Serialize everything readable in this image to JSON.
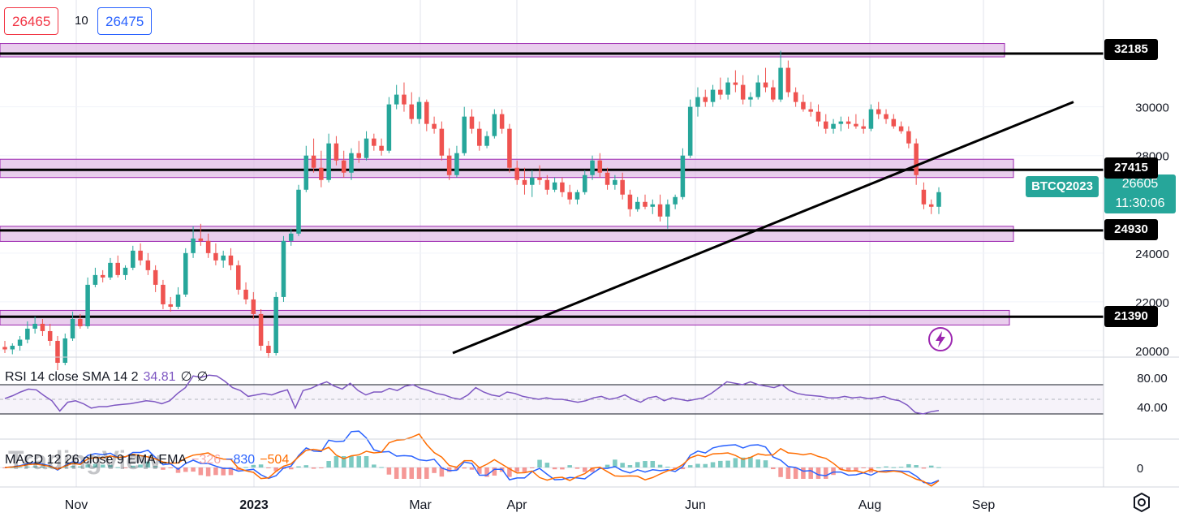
{
  "trade_panel": {
    "sell_price": "26465",
    "spread": "10",
    "buy_price": "26475"
  },
  "symbol_tag": "BTCQ2023",
  "last_price": {
    "value": "26605",
    "countdown": "11:30:06"
  },
  "level_tags": [
    "32185",
    "27415",
    "24930",
    "21390"
  ],
  "rsi_panel": {
    "label": "RSI 14 close SMA 14 2",
    "value": "34.81",
    "extra1": "∅",
    "extra2": "∅",
    "ticks": [
      "80.00",
      "40.00"
    ]
  },
  "macd_panel": {
    "label": "MACD 12 26 close 9 EMA EMA",
    "hist": "−326",
    "macd": "−830",
    "signal": "−504",
    "ticks": [
      "0"
    ]
  },
  "watermark": "TradingView",
  "colors": {
    "up": "#26a69a",
    "down": "#ef5350",
    "zone_fill": "#e1bee7",
    "zone_border": "#9c27b0",
    "rsi": "#7e57c2",
    "macd": "#2962ff",
    "signal": "#ff6d00"
  },
  "icons": {
    "alert": "lightning-bolt-icon",
    "settings": "gear-icon"
  },
  "chart_data": {
    "type": "candlestick",
    "symbol": "BTCQ2023",
    "xlabels": [
      "Nov",
      "2023",
      "Mar",
      "Apr",
      "Jun",
      "Aug",
      "Sep"
    ],
    "ylabels": [
      "32185",
      "30000",
      "28000",
      "27415",
      "26605",
      "24930",
      "24000",
      "22000",
      "21390",
      "20000"
    ],
    "y_ticks": [
      30000,
      28000,
      24000,
      22000,
      20000
    ],
    "ylim": [
      19800,
      33400
    ],
    "horizontal_levels": [
      32185,
      27415,
      24930,
      21390
    ],
    "zones": [
      [
        32050,
        32600
      ],
      [
        27100,
        27850
      ],
      [
        24480,
        25100
      ],
      [
        21050,
        21650
      ]
    ],
    "trendline": {
      "from": {
        "date": "Mar 10",
        "price": 19900
      },
      "to": {
        "date": "Aug 31",
        "price": 30200
      }
    },
    "candles": [
      {
        "o": 20150,
        "h": 20400,
        "l": 19900,
        "c": 20050
      },
      {
        "o": 20050,
        "h": 20300,
        "l": 19850,
        "c": 20200
      },
      {
        "o": 20200,
        "h": 20600,
        "l": 20000,
        "c": 20450
      },
      {
        "o": 20450,
        "h": 21200,
        "l": 20300,
        "c": 20900
      },
      {
        "o": 20900,
        "h": 21400,
        "l": 20700,
        "c": 21100
      },
      {
        "o": 21100,
        "h": 21300,
        "l": 20600,
        "c": 20800
      },
      {
        "o": 20800,
        "h": 21100,
        "l": 20200,
        "c": 20400
      },
      {
        "o": 20400,
        "h": 20600,
        "l": 19200,
        "c": 19500
      },
      {
        "o": 19500,
        "h": 20700,
        "l": 19400,
        "c": 20500
      },
      {
        "o": 20500,
        "h": 21600,
        "l": 20400,
        "c": 21300
      },
      {
        "o": 21300,
        "h": 21500,
        "l": 20900,
        "c": 21000
      },
      {
        "o": 21000,
        "h": 23000,
        "l": 20900,
        "c": 22700
      },
      {
        "o": 22700,
        "h": 23400,
        "l": 22600,
        "c": 23100
      },
      {
        "o": 23100,
        "h": 23300,
        "l": 22800,
        "c": 23000
      },
      {
        "o": 23000,
        "h": 23800,
        "l": 22900,
        "c": 23600
      },
      {
        "o": 23600,
        "h": 23900,
        "l": 23000,
        "c": 23100
      },
      {
        "o": 23100,
        "h": 23500,
        "l": 22900,
        "c": 23400
      },
      {
        "o": 23400,
        "h": 24300,
        "l": 23300,
        "c": 24100
      },
      {
        "o": 24100,
        "h": 24400,
        "l": 23500,
        "c": 23700
      },
      {
        "o": 23700,
        "h": 24000,
        "l": 23100,
        "c": 23300
      },
      {
        "o": 23300,
        "h": 23500,
        "l": 22400,
        "c": 22700
      },
      {
        "o": 22700,
        "h": 22900,
        "l": 21700,
        "c": 21900
      },
      {
        "o": 21900,
        "h": 22200,
        "l": 21600,
        "c": 21800
      },
      {
        "o": 21800,
        "h": 22600,
        "l": 21700,
        "c": 22300
      },
      {
        "o": 22300,
        "h": 24200,
        "l": 22200,
        "c": 24000
      },
      {
        "o": 24000,
        "h": 25100,
        "l": 23800,
        "c": 24600
      },
      {
        "o": 24600,
        "h": 25200,
        "l": 24300,
        "c": 24500
      },
      {
        "o": 24500,
        "h": 24800,
        "l": 23800,
        "c": 24000
      },
      {
        "o": 24000,
        "h": 24400,
        "l": 23500,
        "c": 23700
      },
      {
        "o": 23700,
        "h": 24100,
        "l": 23400,
        "c": 23900
      },
      {
        "o": 23900,
        "h": 24200,
        "l": 23300,
        "c": 23500
      },
      {
        "o": 23500,
        "h": 23700,
        "l": 22300,
        "c": 22500
      },
      {
        "o": 22500,
        "h": 22800,
        "l": 21900,
        "c": 22100
      },
      {
        "o": 22100,
        "h": 22400,
        "l": 21300,
        "c": 21500
      },
      {
        "o": 21500,
        "h": 21700,
        "l": 20000,
        "c": 20200
      },
      {
        "o": 20200,
        "h": 20400,
        "l": 19700,
        "c": 19900
      },
      {
        "o": 19900,
        "h": 22400,
        "l": 19800,
        "c": 22200
      },
      {
        "o": 22200,
        "h": 24700,
        "l": 22000,
        "c": 24500
      },
      {
        "o": 24500,
        "h": 25000,
        "l": 24300,
        "c": 24800
      },
      {
        "o": 24800,
        "h": 26800,
        "l": 24700,
        "c": 26600
      },
      {
        "o": 26600,
        "h": 28400,
        "l": 26500,
        "c": 28000
      },
      {
        "o": 28000,
        "h": 28700,
        "l": 27300,
        "c": 27500
      },
      {
        "o": 27500,
        "h": 28200,
        "l": 26700,
        "c": 27000
      },
      {
        "o": 27000,
        "h": 28900,
        "l": 26900,
        "c": 28500
      },
      {
        "o": 28500,
        "h": 28800,
        "l": 27600,
        "c": 27800
      },
      {
        "o": 27800,
        "h": 28200,
        "l": 27100,
        "c": 27300
      },
      {
        "o": 27300,
        "h": 28300,
        "l": 27000,
        "c": 28100
      },
      {
        "o": 28100,
        "h": 28600,
        "l": 27700,
        "c": 27900
      },
      {
        "o": 27900,
        "h": 29000,
        "l": 27800,
        "c": 28700
      },
      {
        "o": 28700,
        "h": 28900,
        "l": 28200,
        "c": 28400
      },
      {
        "o": 28400,
        "h": 28700,
        "l": 28000,
        "c": 28200
      },
      {
        "o": 28200,
        "h": 30400,
        "l": 28100,
        "c": 30100
      },
      {
        "o": 30100,
        "h": 30900,
        "l": 29900,
        "c": 30500
      },
      {
        "o": 30500,
        "h": 31000,
        "l": 29800,
        "c": 30100
      },
      {
        "o": 30100,
        "h": 30600,
        "l": 29300,
        "c": 29500
      },
      {
        "o": 29500,
        "h": 30400,
        "l": 29300,
        "c": 30200
      },
      {
        "o": 30200,
        "h": 30300,
        "l": 29000,
        "c": 29300
      },
      {
        "o": 29300,
        "h": 29600,
        "l": 28900,
        "c": 29100
      },
      {
        "o": 29100,
        "h": 29400,
        "l": 27800,
        "c": 28000
      },
      {
        "o": 28000,
        "h": 28300,
        "l": 27000,
        "c": 27200
      },
      {
        "o": 27200,
        "h": 28400,
        "l": 27100,
        "c": 28100
      },
      {
        "o": 28100,
        "h": 30000,
        "l": 28000,
        "c": 29600
      },
      {
        "o": 29600,
        "h": 29900,
        "l": 28900,
        "c": 29100
      },
      {
        "o": 29100,
        "h": 29400,
        "l": 28200,
        "c": 28400
      },
      {
        "o": 28400,
        "h": 29000,
        "l": 28300,
        "c": 28800
      },
      {
        "o": 28800,
        "h": 29900,
        "l": 28700,
        "c": 29700
      },
      {
        "o": 29700,
        "h": 29900,
        "l": 28900,
        "c": 29100
      },
      {
        "o": 29100,
        "h": 29300,
        "l": 27300,
        "c": 27500
      },
      {
        "o": 27500,
        "h": 27800,
        "l": 26800,
        "c": 27000
      },
      {
        "o": 27000,
        "h": 27500,
        "l": 26400,
        "c": 26800
      },
      {
        "o": 26800,
        "h": 27400,
        "l": 26300,
        "c": 27100
      },
      {
        "o": 27100,
        "h": 27600,
        "l": 26800,
        "c": 27000
      },
      {
        "o": 27000,
        "h": 27200,
        "l": 26400,
        "c": 26600
      },
      {
        "o": 26600,
        "h": 27100,
        "l": 26500,
        "c": 26900
      },
      {
        "o": 26900,
        "h": 27100,
        "l": 26300,
        "c": 26500
      },
      {
        "o": 26500,
        "h": 26800,
        "l": 26000,
        "c": 26200
      },
      {
        "o": 26200,
        "h": 26600,
        "l": 26000,
        "c": 26500
      },
      {
        "o": 26500,
        "h": 27400,
        "l": 26400,
        "c": 27200
      },
      {
        "o": 27200,
        "h": 28000,
        "l": 27000,
        "c": 27800
      },
      {
        "o": 27800,
        "h": 28100,
        "l": 27100,
        "c": 27300
      },
      {
        "o": 27300,
        "h": 27500,
        "l": 26600,
        "c": 26800
      },
      {
        "o": 26800,
        "h": 27200,
        "l": 26600,
        "c": 27000
      },
      {
        "o": 27000,
        "h": 27300,
        "l": 26200,
        "c": 26400
      },
      {
        "o": 26400,
        "h": 26600,
        "l": 25500,
        "c": 25800
      },
      {
        "o": 25800,
        "h": 26300,
        "l": 25700,
        "c": 26100
      },
      {
        "o": 26100,
        "h": 26400,
        "l": 25800,
        "c": 25900
      },
      {
        "o": 25900,
        "h": 26200,
        "l": 25600,
        "c": 26000
      },
      {
        "o": 26000,
        "h": 26400,
        "l": 25300,
        "c": 25500
      },
      {
        "o": 25500,
        "h": 26200,
        "l": 25000,
        "c": 26000
      },
      {
        "o": 26000,
        "h": 26400,
        "l": 25800,
        "c": 26300
      },
      {
        "o": 26300,
        "h": 28300,
        "l": 26200,
        "c": 28000
      },
      {
        "o": 28000,
        "h": 30300,
        "l": 27900,
        "c": 30000
      },
      {
        "o": 30000,
        "h": 30800,
        "l": 29600,
        "c": 30400
      },
      {
        "o": 30400,
        "h": 30700,
        "l": 30000,
        "c": 30200
      },
      {
        "o": 30200,
        "h": 30900,
        "l": 30000,
        "c": 30700
      },
      {
        "o": 30700,
        "h": 31200,
        "l": 30300,
        "c": 30500
      },
      {
        "o": 30500,
        "h": 31200,
        "l": 30300,
        "c": 31000
      },
      {
        "o": 31000,
        "h": 31500,
        "l": 30600,
        "c": 30900
      },
      {
        "o": 30900,
        "h": 31300,
        "l": 30100,
        "c": 30300
      },
      {
        "o": 30300,
        "h": 30600,
        "l": 30000,
        "c": 30400
      },
      {
        "o": 30400,
        "h": 31300,
        "l": 30300,
        "c": 31000
      },
      {
        "o": 31000,
        "h": 31600,
        "l": 30600,
        "c": 30800
      },
      {
        "o": 30800,
        "h": 31100,
        "l": 30200,
        "c": 30300
      },
      {
        "o": 30300,
        "h": 32300,
        "l": 30200,
        "c": 31600
      },
      {
        "o": 31600,
        "h": 31900,
        "l": 30400,
        "c": 30600
      },
      {
        "o": 30600,
        "h": 30800,
        "l": 30000,
        "c": 30200
      },
      {
        "o": 30200,
        "h": 30500,
        "l": 29800,
        "c": 29900
      },
      {
        "o": 29900,
        "h": 30200,
        "l": 29600,
        "c": 29800
      },
      {
        "o": 29800,
        "h": 30100,
        "l": 29200,
        "c": 29400
      },
      {
        "o": 29400,
        "h": 29700,
        "l": 28900,
        "c": 29100
      },
      {
        "o": 29100,
        "h": 29500,
        "l": 28900,
        "c": 29300
      },
      {
        "o": 29300,
        "h": 29600,
        "l": 29000,
        "c": 29400
      },
      {
        "o": 29400,
        "h": 29600,
        "l": 29100,
        "c": 29300
      },
      {
        "o": 29300,
        "h": 29700,
        "l": 29100,
        "c": 29200
      },
      {
        "o": 29200,
        "h": 29500,
        "l": 28900,
        "c": 29100
      },
      {
        "o": 29100,
        "h": 30100,
        "l": 29000,
        "c": 29900
      },
      {
        "o": 29900,
        "h": 30200,
        "l": 29500,
        "c": 29700
      },
      {
        "o": 29700,
        "h": 29900,
        "l": 29300,
        "c": 29500
      },
      {
        "o": 29500,
        "h": 29700,
        "l": 29100,
        "c": 29200
      },
      {
        "o": 29200,
        "h": 29400,
        "l": 28900,
        "c": 29000
      },
      {
        "o": 29000,
        "h": 29200,
        "l": 28300,
        "c": 28500
      },
      {
        "o": 28500,
        "h": 28700,
        "l": 26800,
        "c": 27200
      },
      {
        "o": 26600,
        "h": 26900,
        "l": 25800,
        "c": 26000
      },
      {
        "o": 26000,
        "h": 26200,
        "l": 25600,
        "c": 25900
      },
      {
        "o": 25900,
        "h": 26700,
        "l": 25600,
        "c": 26500
      }
    ],
    "rsi": {
      "ylim": [
        0,
        100
      ],
      "levels": [
        70,
        50,
        30
      ],
      "last": 34.81,
      "values": [
        51,
        55,
        60,
        64,
        63,
        55,
        48,
        34,
        46,
        48,
        44,
        38,
        40,
        40,
        42,
        43,
        44,
        46,
        48,
        47,
        44,
        48,
        58,
        66,
        82,
        80,
        83,
        82,
        75,
        66,
        62,
        54,
        56,
        58,
        56,
        60,
        63,
        38,
        62,
        65,
        70,
        74,
        68,
        64,
        72,
        62,
        56,
        60,
        60,
        65,
        62,
        68,
        70,
        65,
        62,
        58,
        56,
        52,
        50,
        56,
        66,
        60,
        56,
        54,
        60,
        58,
        54,
        52,
        50,
        52,
        50,
        50,
        48,
        46,
        48,
        52,
        54,
        50,
        52,
        56,
        50,
        46,
        52,
        54,
        48,
        52,
        50,
        48,
        50,
        52,
        58,
        66,
        74,
        72,
        70,
        74,
        70,
        68,
        66,
        70,
        62,
        58,
        56,
        55,
        54,
        52,
        52,
        54,
        52,
        53,
        51,
        52,
        54,
        50,
        48,
        42,
        32,
        30,
        33,
        34.81
      ]
    },
    "macd": {
      "zero": 0,
      "hist_last": -326,
      "macd_last": -830,
      "signal_last": -504
    }
  }
}
